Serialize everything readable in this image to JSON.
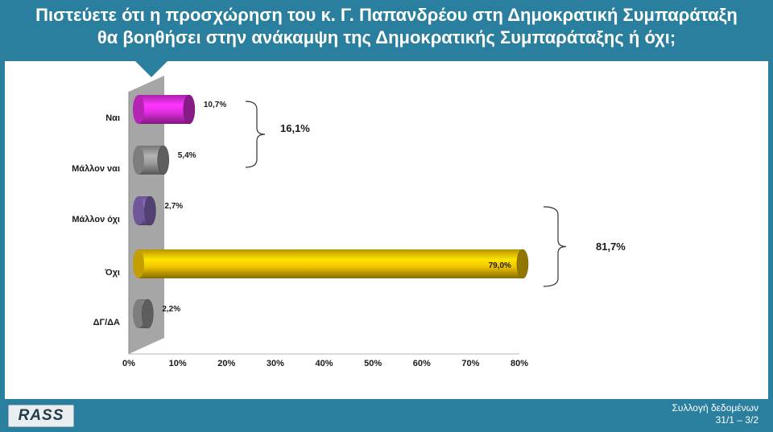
{
  "header": {
    "title_line1": "Πιστεύετε ότι η προσχώρηση του κ. Γ. Παπανδρέου στη Δημοκρατική Συμπαράταξη",
    "title_line2": "θα βοηθήσει στην ανάκαμψη της Δημοκρατικής Συμπαράταξης ή όχι;"
  },
  "footer": {
    "logo_text": "RASS",
    "info_line1": "Συλλογή δεδομένων",
    "info_line2": "31/1 – 3/2"
  },
  "colors": {
    "theme": "#2a7f9e",
    "magenta": "#e12ee1",
    "grey": "#9c9c9c",
    "purple": "#8c6dbf",
    "gold": "#f2c500"
  },
  "chart_data": {
    "type": "bar",
    "orientation": "horizontal",
    "categories": [
      "Ναι",
      "Μάλλον ναι",
      "Μάλλον όχι",
      "Όχι",
      "ΔΓ/ΔΑ"
    ],
    "values": [
      10.7,
      5.4,
      2.7,
      79.0,
      2.2
    ],
    "value_labels": [
      "10,7%",
      "5,4%",
      "2,7%",
      "79,0%",
      "2,2%"
    ],
    "bar_colors": [
      "#e12ee1",
      "#9c9c9c",
      "#8c6dbf",
      "#f2c500",
      "#9c9c9c"
    ],
    "xlim": [
      0,
      80
    ],
    "x_ticks": [
      "0%",
      "10%",
      "20%",
      "30%",
      "40%",
      "50%",
      "60%",
      "70%",
      "80%"
    ],
    "groups": [
      {
        "label": "16,1%",
        "from": 0,
        "to": 1
      },
      {
        "label": "81,7%",
        "from": 2,
        "to": 3
      }
    ],
    "grid": false,
    "legend": "none"
  }
}
